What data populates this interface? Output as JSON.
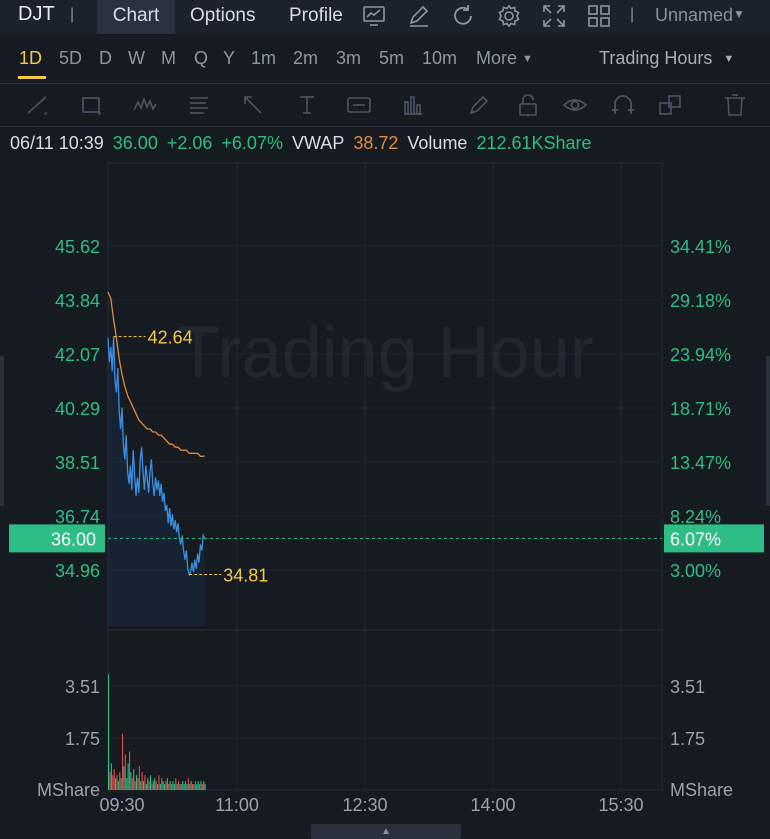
{
  "header": {
    "ticker": "DJT",
    "separator": "|",
    "tabs": [
      {
        "label": "Chart",
        "active": true
      },
      {
        "label": "Options",
        "active": false
      },
      {
        "label": "Profile",
        "active": false
      }
    ],
    "icons": [
      "chart-settings-icon",
      "draw-icon",
      "refresh-icon",
      "gear-icon",
      "fullscreen-icon",
      "layout-grid-icon"
    ],
    "layout_name": "Unnamed"
  },
  "timeframes": {
    "items": [
      "1D",
      "5D",
      "D",
      "W",
      "M",
      "Q",
      "Y",
      "1m",
      "2m",
      "3m",
      "5m",
      "10m"
    ],
    "active": "1D",
    "more_label": "More",
    "session_label": "Trading Hours"
  },
  "drawing_tools": [
    "trendline-tool-icon",
    "rectangle-tool-icon",
    "pattern-tool-icon",
    "fib-tool-icon",
    "arrow-tool-icon",
    "text-tool-icon",
    "note-tool-icon",
    "measure-tool-icon",
    "pen-icon",
    "lock-icon",
    "eye-icon",
    "magnet-icon",
    "copy-icon",
    "trash-icon"
  ],
  "info": {
    "datetime": "06/11 10:39",
    "price": "36.00",
    "change": "+2.06",
    "change_pct": "+6.07%",
    "vwap_label": "VWAP",
    "vwap_value": "38.72",
    "volume_label": "Volume",
    "volume_value": "212.61KShare"
  },
  "colors": {
    "up": "#2ebd85",
    "price_line": "#3b8fe0",
    "vwap_line": "#e08a3c",
    "annotation": "#f2c94c",
    "down": "#e0504b"
  },
  "chart_data": {
    "type": "line",
    "watermark": "Trading Hour",
    "x_ticks": [
      "09:30",
      "11:00",
      "12:30",
      "14:00",
      "15:30"
    ],
    "price_ticks": [
      "45.62",
      "43.84",
      "42.07",
      "40.29",
      "38.51",
      "36.74",
      "34.96"
    ],
    "percent_ticks": [
      "34.41%",
      "29.18%",
      "23.94%",
      "18.71%",
      "13.47%",
      "8.24%",
      "3.00%"
    ],
    "current_price_label": "36.00",
    "current_percent_label": "6.07%",
    "high_label": "42.64",
    "low_label": "34.81",
    "volume_ticks": [
      "3.51",
      "1.75"
    ],
    "volume_unit": "MShare",
    "series": [
      {
        "role": "price",
        "x": [
          0,
          1,
          2,
          3,
          4,
          5,
          6,
          7,
          8,
          9,
          10,
          11,
          12,
          13,
          14,
          15,
          16,
          17,
          18,
          19,
          20,
          21,
          22,
          23,
          24,
          25,
          26,
          27,
          28,
          29,
          30,
          31,
          32,
          33,
          34,
          35,
          36,
          37,
          38,
          39,
          40,
          41,
          42,
          43,
          44,
          45,
          46,
          47,
          48,
          49,
          50,
          51,
          52,
          53,
          54,
          55,
          56,
          57,
          58,
          59,
          60,
          61,
          62,
          63,
          64,
          65,
          66,
          67,
          68,
          69
        ],
        "values": [
          42.6,
          41.8,
          42.3,
          41.5,
          42.64,
          41.2,
          40.8,
          41.6,
          40.2,
          39.6,
          40.3,
          39.1,
          38.6,
          39.4,
          38.2,
          37.8,
          38.4,
          37.6,
          38.9,
          38.1,
          37.4,
          38.0,
          37.5,
          38.6,
          39.0,
          38.2,
          37.6,
          38.4,
          38.0,
          37.5,
          38.2,
          38.6,
          37.8,
          37.4,
          38.0,
          37.6,
          37.9,
          37.4,
          37.8,
          37.2,
          37.5,
          36.9,
          37.1,
          36.5,
          37.0,
          36.4,
          36.8,
          36.3,
          36.6,
          36.2,
          36.5,
          36.0,
          35.8,
          36.1,
          35.6,
          35.3,
          35.6,
          35.0,
          34.81,
          34.9,
          35.2,
          34.9,
          35.3,
          35.0,
          35.5,
          35.2,
          35.8,
          35.6,
          36.1,
          36.0
        ]
      },
      {
        "role": "vwap",
        "x": [
          0,
          2,
          4,
          6,
          8,
          10,
          12,
          14,
          16,
          18,
          20,
          22,
          24,
          26,
          28,
          30,
          32,
          34,
          36,
          38,
          40,
          42,
          44,
          46,
          48,
          50,
          52,
          54,
          56,
          58,
          60,
          62,
          64,
          66,
          68,
          69
        ],
        "values": [
          44.1,
          43.9,
          43.2,
          42.6,
          41.9,
          41.4,
          41.0,
          40.7,
          40.5,
          40.3,
          40.1,
          39.9,
          39.8,
          39.7,
          39.6,
          39.6,
          39.5,
          39.5,
          39.4,
          39.4,
          39.3,
          39.2,
          39.1,
          39.1,
          39.0,
          39.0,
          38.9,
          38.9,
          38.9,
          38.8,
          38.8,
          38.8,
          38.8,
          38.7,
          38.7,
          38.72
        ]
      }
    ],
    "volume": [
      3.9,
      0.6,
      0.9,
      0.5,
      0.7,
      0.4,
      0.5,
      0.3,
      0.6,
      0.4,
      1.9,
      0.8,
      1.2,
      0.4,
      0.9,
      1.3,
      0.6,
      0.4,
      0.7,
      0.3,
      0.5,
      0.4,
      0.8,
      0.3,
      0.6,
      0.3,
      0.5,
      0.2,
      0.4,
      0.3,
      0.5,
      0.2,
      0.3,
      0.4,
      0.3,
      0.2,
      0.5,
      0.2,
      0.4,
      0.3,
      0.2,
      0.3,
      0.4,
      0.2,
      0.3,
      0.2,
      0.3,
      0.2,
      0.4,
      0.2,
      0.3,
      0.2,
      0.2,
      0.3,
      0.2,
      0.3,
      0.2,
      0.4,
      0.2,
      0.3,
      0.2,
      0.2,
      0.3,
      0.2,
      0.3,
      0.2,
      0.3,
      0.2,
      0.3,
      0.2
    ],
    "volume_up": [
      1,
      0,
      1,
      0,
      0,
      1,
      0,
      1,
      0,
      1,
      0,
      1,
      0,
      1,
      1,
      0,
      1,
      0,
      1,
      0,
      1,
      0,
      0,
      1,
      0,
      1,
      0,
      1,
      1,
      0,
      1,
      0,
      1,
      1,
      0,
      1,
      0,
      1,
      0,
      1,
      1,
      0,
      1,
      0,
      1,
      0,
      1,
      1,
      0,
      1,
      0,
      1,
      0,
      1,
      1,
      0,
      1,
      0,
      1,
      1,
      0,
      1,
      0,
      1,
      1,
      0,
      1,
      0,
      1,
      1
    ],
    "ylim": [
      34.96,
      45.62
    ],
    "volume_ylim": [
      0,
      5.26
    ],
    "x_range": [
      0,
      390
    ],
    "grid": true
  }
}
